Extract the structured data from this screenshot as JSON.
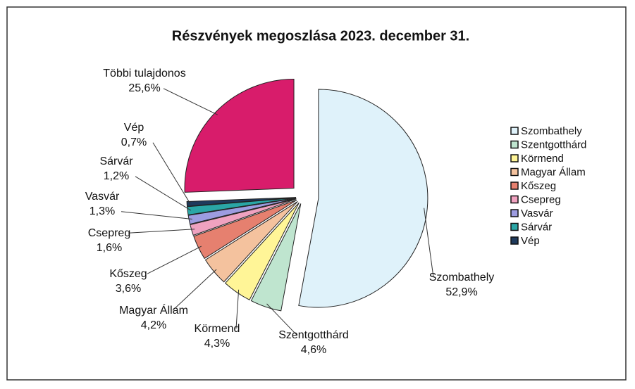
{
  "chart_data": {
    "type": "pie",
    "title": "Részvények megoszlása   2023. december 31.",
    "categories": [
      "Szombathely",
      "Szentgotthárd",
      "Körmend",
      "Magyar Állam",
      "Kőszeg",
      "Csepreg",
      "Vasvár",
      "Sárvár",
      "Vép",
      "Többi tulajdonos"
    ],
    "values": [
      52.9,
      4.6,
      4.3,
      4.2,
      3.6,
      1.6,
      1.3,
      1.2,
      0.7,
      25.6
    ],
    "value_labels": [
      "52,9%",
      "4,6%",
      "4,3%",
      "4,2%",
      "3,6%",
      "1,6%",
      "1,3%",
      "1,2%",
      "0,7%",
      "25,6%"
    ],
    "colors": [
      "#dff2fa",
      "#bfe5cf",
      "#fff597",
      "#f4c29e",
      "#e6806f",
      "#f0a2c0",
      "#9d9ce0",
      "#2aa6a6",
      "#1f3a5c",
      "#d81c6b"
    ],
    "legend_count": 9,
    "legend": "right"
  }
}
